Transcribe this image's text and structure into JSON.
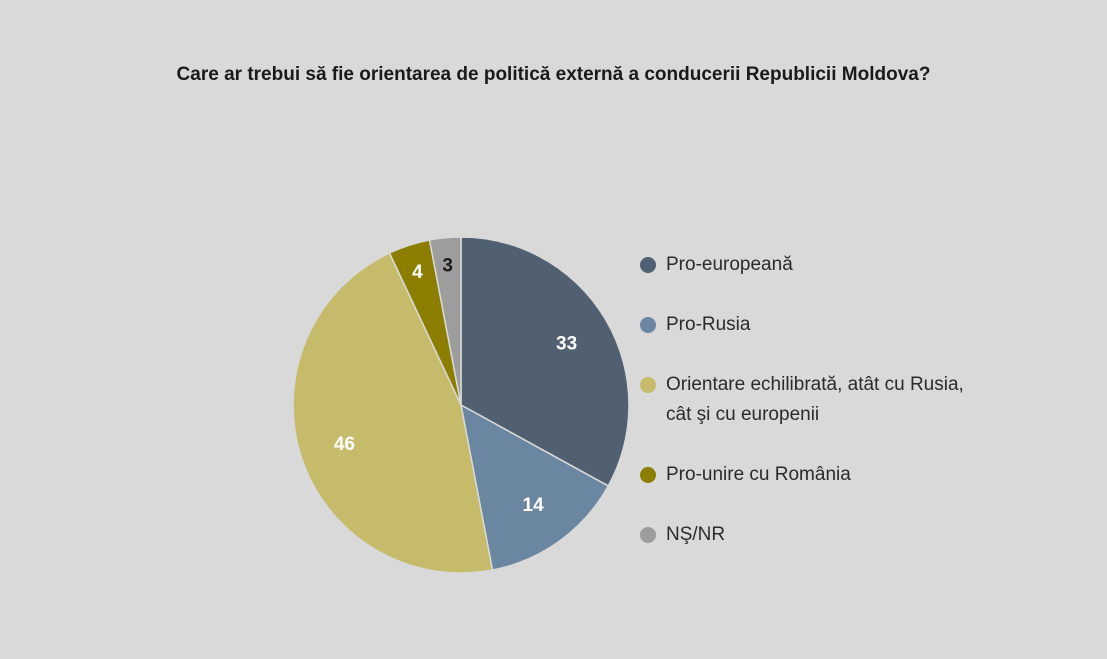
{
  "chart_data": {
    "type": "pie",
    "title": "Care ar trebui să fie orientarea de politică externă a conducerii Republicii Moldova?",
    "categories": [
      "Pro-europeană",
      "Pro-Rusia",
      "Orientare echilibrată, atât cu Rusia, cât şi cu europenii",
      "Pro-unire cu România",
      "NŞ/NR"
    ],
    "values": [
      33,
      14,
      46,
      4,
      3
    ],
    "colors": [
      "#506070",
      "#6b86a0",
      "#c5bb6b",
      "#8c7e00",
      "#9d9d9d"
    ],
    "label_colors": [
      "#ffffff",
      "#ffffff",
      "#ffffff",
      "#ffffff",
      "#1a1a1a"
    ],
    "legend_position": "right",
    "start_angle_deg": 0,
    "direction": "clockwise"
  }
}
